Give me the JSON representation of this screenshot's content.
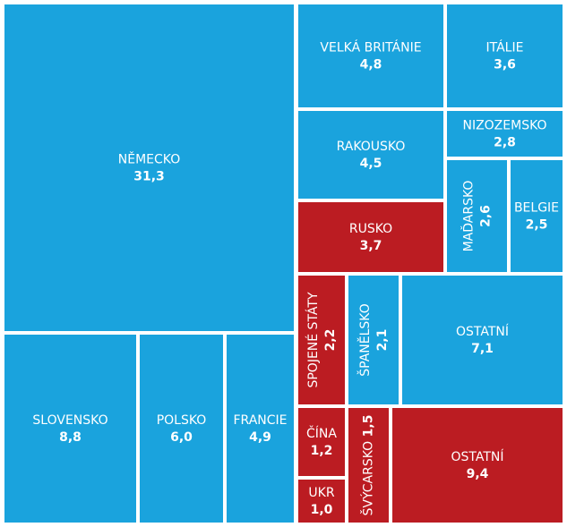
{
  "chart_data": {
    "type": "treemap",
    "categories": [
      "NĚMECKO",
      "SLOVENSKO",
      "POLSKO",
      "FRANCIE",
      "VELKÁ BRITÁNIE",
      "ITÁLIE",
      "NIZOZEMSKO",
      "RAKOUSKO",
      "MAĎARSKO",
      "BELGIE",
      "RUSKO",
      "SPOJENÉ STÁTY",
      "ŠPANĚLSKO",
      "OSTATNÍ",
      "ČÍNA",
      "UKR",
      "ŠVÝCARSKO",
      "OSTATNÍ"
    ],
    "values": [
      31.3,
      8.8,
      6.0,
      4.9,
      4.8,
      3.6,
      2.8,
      4.5,
      2.6,
      2.5,
      3.7,
      2.2,
      2.1,
      7.1,
      1.2,
      1.0,
      1.5,
      9.4
    ],
    "value_labels": [
      "31,3",
      "8,8",
      "6,0",
      "4,9",
      "4,8",
      "3,6",
      "2,8",
      "4,5",
      "2,6",
      "2,5",
      "3,7",
      "2,2",
      "2,1",
      "7,1",
      "1,2",
      "1,0",
      "1,5",
      "9,4"
    ],
    "colors": [
      "#1aa3dd",
      "#1aa3dd",
      "#1aa3dd",
      "#1aa3dd",
      "#1aa3dd",
      "#1aa3dd",
      "#1aa3dd",
      "#1aa3dd",
      "#1aa3dd",
      "#1aa3dd",
      "#bb1c22",
      "#bb1c22",
      "#1aa3dd",
      "#1aa3dd",
      "#bb1c22",
      "#bb1c22",
      "#bb1c22",
      "#bb1c22"
    ]
  }
}
